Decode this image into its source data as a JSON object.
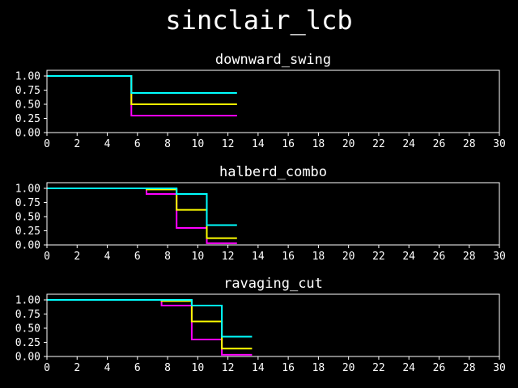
{
  "figure": {
    "title": "sinclair_lcb"
  },
  "colors": {
    "background": "#000000",
    "foreground": "#ffffff",
    "series": [
      "#ff00ff",
      "#ffff00",
      "#00ffff"
    ]
  },
  "chart_data": [
    {
      "type": "line",
      "step": "post",
      "title": "downward_swing",
      "xlabel": "",
      "ylabel": "",
      "xlim": [
        0,
        30
      ],
      "ylim": [
        0,
        1.1
      ],
      "xticks": [
        0,
        2,
        4,
        6,
        8,
        10,
        12,
        14,
        16,
        18,
        20,
        22,
        24,
        26,
        28,
        30
      ],
      "yticks": [
        0.0,
        0.25,
        0.5,
        0.75,
        1.0
      ],
      "ytick_labels": [
        "0.00",
        "0.25",
        "0.50",
        "0.75",
        "1.00"
      ],
      "grid": false,
      "series": [
        {
          "color": "#ff00ff",
          "x": [
            0,
            5.6,
            12.6
          ],
          "y": [
            1.0,
            0.3,
            0.3
          ]
        },
        {
          "color": "#ffff00",
          "x": [
            0,
            5.6,
            12.6
          ],
          "y": [
            1.0,
            0.5,
            0.5
          ]
        },
        {
          "color": "#00ffff",
          "x": [
            0,
            5.6,
            12.6
          ],
          "y": [
            1.0,
            0.7,
            0.7
          ]
        }
      ]
    },
    {
      "type": "line",
      "step": "post",
      "title": "halberd_combo",
      "xlabel": "",
      "ylabel": "",
      "xlim": [
        0,
        30
      ],
      "ylim": [
        0,
        1.1
      ],
      "xticks": [
        0,
        2,
        4,
        6,
        8,
        10,
        12,
        14,
        16,
        18,
        20,
        22,
        24,
        26,
        28,
        30
      ],
      "yticks": [
        0.0,
        0.25,
        0.5,
        0.75,
        1.0
      ],
      "ytick_labels": [
        "0.00",
        "0.25",
        "0.50",
        "0.75",
        "1.00"
      ],
      "grid": false,
      "series": [
        {
          "color": "#ff00ff",
          "x": [
            0,
            6.6,
            8.6,
            10.6,
            12.6
          ],
          "y": [
            1.0,
            0.9,
            0.3,
            0.03,
            0.03
          ]
        },
        {
          "color": "#ffff00",
          "x": [
            0,
            6.6,
            8.6,
            10.6,
            12.6
          ],
          "y": [
            1.0,
            0.98,
            0.62,
            0.12,
            0.12
          ]
        },
        {
          "color": "#00ffff",
          "x": [
            0,
            8.6,
            10.6,
            12.6
          ],
          "y": [
            1.0,
            0.9,
            0.35,
            0.35
          ]
        }
      ]
    },
    {
      "type": "line",
      "step": "post",
      "title": "ravaging_cut",
      "xlabel": "",
      "ylabel": "",
      "xlim": [
        0,
        30
      ],
      "ylim": [
        0,
        1.1
      ],
      "xticks": [
        0,
        2,
        4,
        6,
        8,
        10,
        12,
        14,
        16,
        18,
        20,
        22,
        24,
        26,
        28,
        30
      ],
      "yticks": [
        0.0,
        0.25,
        0.5,
        0.75,
        1.0
      ],
      "ytick_labels": [
        "0.00",
        "0.25",
        "0.50",
        "0.75",
        "1.00"
      ],
      "grid": false,
      "series": [
        {
          "color": "#ff00ff",
          "x": [
            0,
            7.6,
            9.6,
            11.6,
            13.6
          ],
          "y": [
            1.0,
            0.9,
            0.3,
            0.03,
            0.03
          ]
        },
        {
          "color": "#ffff00",
          "x": [
            0,
            7.6,
            9.6,
            11.6,
            13.6
          ],
          "y": [
            1.0,
            0.98,
            0.62,
            0.14,
            0.14
          ]
        },
        {
          "color": "#00ffff",
          "x": [
            0,
            9.6,
            11.6,
            13.6
          ],
          "y": [
            1.0,
            0.9,
            0.35,
            0.35
          ]
        }
      ]
    }
  ]
}
